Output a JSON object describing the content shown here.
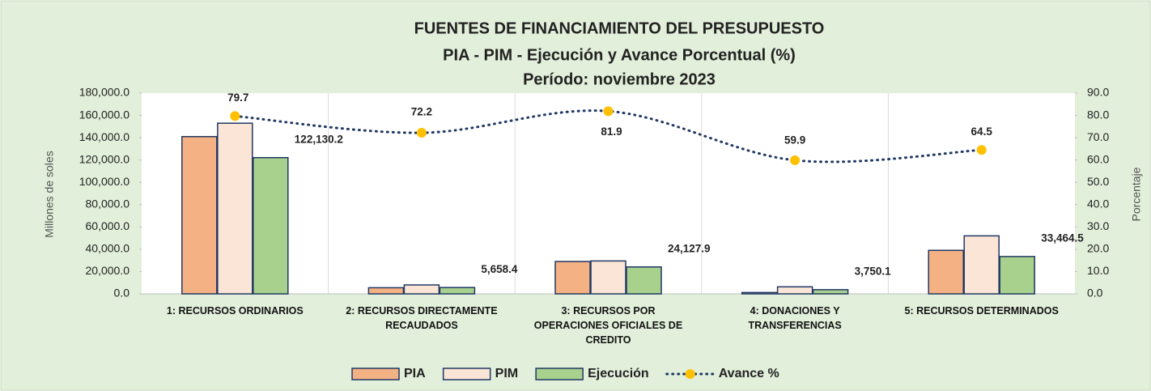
{
  "chart_data": {
    "type": "bar",
    "title": "FUENTES DE FINANCIAMIENTO DEL PRESUPUESTO",
    "subtitles": [
      "PIA - PIM - Ejecución y Avance Porcentual (%)",
      "Período:  noviembre 2023"
    ],
    "ylabel": "Millones de soles",
    "y2label": "Porcentaje",
    "categories": [
      "1: RECURSOS ORDINARIOS",
      "2: RECURSOS DIRECTAMENTE RECAUDADOS",
      "3: RECURSOS POR OPERACIONES OFICIALES DE CREDITO",
      "4: DONACIONES Y TRANSFERENCIAS",
      "5: RECURSOS DETERMINADOS"
    ],
    "series": [
      {
        "name": "PIA",
        "color": "#f4b183",
        "values": [
          141000,
          5500,
          29000,
          1200,
          39000
        ]
      },
      {
        "name": "PIM",
        "color": "#fbe5d6",
        "values": [
          153000,
          8000,
          29500,
          6300,
          52000
        ]
      },
      {
        "name": "Ejecución",
        "color": "#a9d18e",
        "values": [
          122130.2,
          5658.4,
          24127.9,
          3750.1,
          33464.5
        ],
        "value_labels": [
          "122,130.2",
          "5,658.4",
          "24,127.9",
          "3,750.1",
          "33,464.5"
        ]
      },
      {
        "name": "Avance %",
        "type": "line",
        "axis": "y2",
        "color": "#203864",
        "marker_color": "#ffc000",
        "values": [
          79.7,
          72.2,
          81.9,
          59.9,
          64.5
        ]
      }
    ],
    "bar_edge_color": "#203864",
    "ylim": [
      0,
      180000
    ],
    "yticks": [
      {
        "value": 0,
        "label": "0.0"
      },
      {
        "value": 20000,
        "label": "20,000.0"
      },
      {
        "value": 40000,
        "label": "40,000.0"
      },
      {
        "value": 60000,
        "label": "60,000.0"
      },
      {
        "value": 80000,
        "label": "80,000.0"
      },
      {
        "value": 100000,
        "label": "100,000.0"
      },
      {
        "value": 120000,
        "label": "120,000.0"
      },
      {
        "value": 140000,
        "label": "140,000.0"
      },
      {
        "value": 160000,
        "label": "160,000.0"
      },
      {
        "value": 180000,
        "label": "180,000.0"
      }
    ],
    "y2lim": [
      0,
      90
    ],
    "y2ticks": [
      {
        "value": 0,
        "label": "0.0"
      },
      {
        "value": 10,
        "label": "10.0"
      },
      {
        "value": 20,
        "label": "20.0"
      },
      {
        "value": 30,
        "label": "30.0"
      },
      {
        "value": 40,
        "label": "40.0"
      },
      {
        "value": 50,
        "label": "50.0"
      },
      {
        "value": 60,
        "label": "60.0"
      },
      {
        "value": 70,
        "label": "70.0"
      },
      {
        "value": 80,
        "label": "80.0"
      },
      {
        "value": 90,
        "label": "90.0"
      }
    ],
    "legend": "bottom"
  }
}
